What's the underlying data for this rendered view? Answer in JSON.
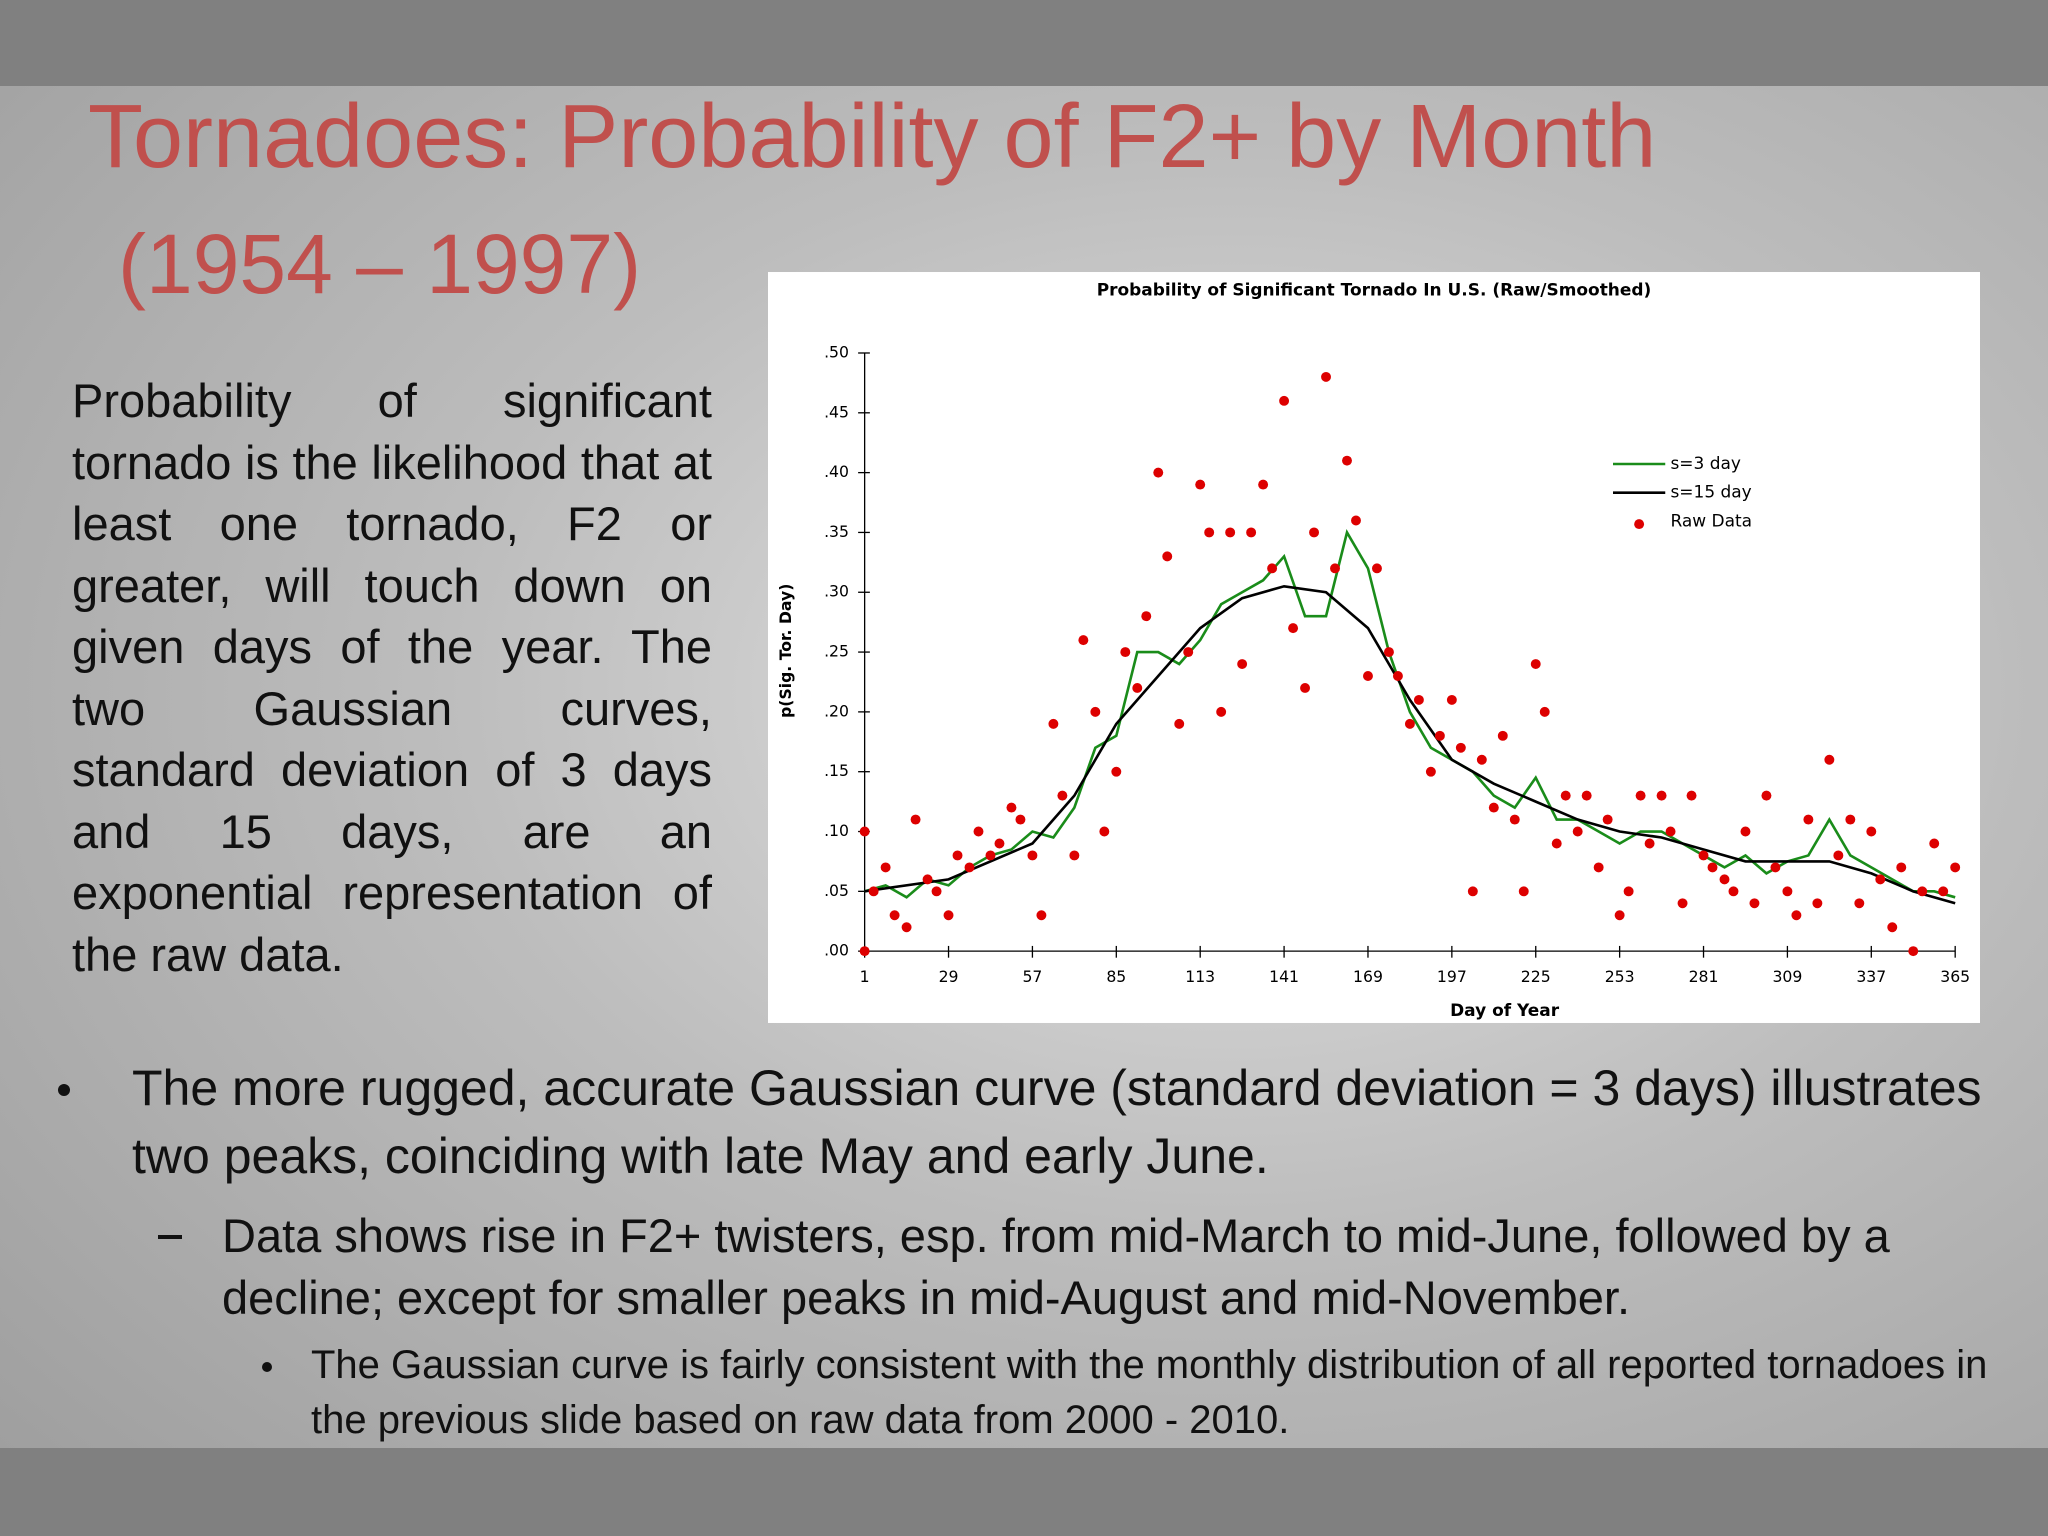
{
  "slide": {
    "title": "Tornadoes: Probability of F2+ by Month",
    "subtitle": "(1954 – 1997)",
    "paragraph": "Probability of significant tornado is the likelihood that at least one tornado, F2 or greater, will touch down on given days of the year.  The two Gaussian curves, standard deviation of 3 days and 15 days, are an exponential representation of the raw data.",
    "bullets": [
      "The more rugged, accurate Gaussian curve (standard deviation = 3 days) illustrates two peaks, coinciding with late May and early June.",
      "Data shows rise in F2+ twisters, esp. from mid-March to mid-June, followed by a decline; except for smaller peaks in mid-August and mid-November.",
      "The Gaussian curve is fairly consistent with the monthly distribution of all reported tornadoes in the previous slide based on raw data from 2000 - 2010."
    ]
  },
  "chart_data": {
    "type": "scatter",
    "title": "Probability of Significant Tornado In U.S. (Raw/Smoothed)",
    "x_label": "Day of Year",
    "y_label": "p(Sig. Tor. Day)",
    "xlim": [
      1,
      365
    ],
    "ylim": [
      0,
      0.5
    ],
    "xticks": [
      1,
      29,
      57,
      85,
      113,
      141,
      169,
      197,
      225,
      253,
      281,
      309,
      337,
      365
    ],
    "yticks": [
      {
        "value": 0,
        "label": ".00"
      },
      {
        "value": 0.05,
        "label": ".05"
      },
      {
        "value": 0.1,
        "label": ".10"
      },
      {
        "value": 0.15,
        "label": ".15"
      },
      {
        "value": 0.2,
        "label": ".20"
      },
      {
        "value": 0.25,
        "label": ".25"
      },
      {
        "value": 0.3,
        "label": ".30"
      },
      {
        "value": 0.35,
        "label": ".35"
      },
      {
        "value": 0.4,
        "label": ".40"
      },
      {
        "value": 0.45,
        "label": ".45"
      },
      {
        "value": 0.5,
        "label": ".50"
      }
    ],
    "grid": false,
    "legend": "upper right",
    "series": [
      {
        "name": "s=3 day",
        "type": "line",
        "color": "#1a8c1a",
        "x": [
          1,
          8,
          15,
          22,
          29,
          36,
          43,
          50,
          57,
          64,
          71,
          78,
          85,
          92,
          99,
          106,
          113,
          120,
          127,
          134,
          141,
          148,
          155,
          162,
          169,
          176,
          183,
          190,
          197,
          204,
          211,
          218,
          225,
          232,
          239,
          246,
          253,
          260,
          267,
          274,
          281,
          288,
          295,
          302,
          309,
          316,
          323,
          330,
          337,
          344,
          351,
          358,
          365
        ],
        "values": [
          0.05,
          0.055,
          0.045,
          0.06,
          0.055,
          0.07,
          0.08,
          0.085,
          0.1,
          0.095,
          0.12,
          0.17,
          0.18,
          0.25,
          0.25,
          0.24,
          0.26,
          0.29,
          0.3,
          0.31,
          0.33,
          0.28,
          0.28,
          0.35,
          0.32,
          0.25,
          0.2,
          0.17,
          0.16,
          0.15,
          0.13,
          0.12,
          0.145,
          0.11,
          0.11,
          0.1,
          0.09,
          0.1,
          0.1,
          0.09,
          0.08,
          0.07,
          0.08,
          0.065,
          0.075,
          0.08,
          0.11,
          0.08,
          0.07,
          0.06,
          0.05,
          0.05,
          0.045
        ]
      },
      {
        "name": "s=15 day",
        "type": "line",
        "color": "#000000",
        "x": [
          1,
          29,
          57,
          71,
          85,
          99,
          113,
          127,
          141,
          155,
          169,
          183,
          197,
          211,
          225,
          239,
          253,
          267,
          281,
          295,
          309,
          323,
          337,
          351,
          365
        ],
        "values": [
          0.05,
          0.06,
          0.09,
          0.13,
          0.19,
          0.23,
          0.27,
          0.295,
          0.305,
          0.3,
          0.27,
          0.21,
          0.16,
          0.14,
          0.125,
          0.11,
          0.1,
          0.095,
          0.085,
          0.075,
          0.075,
          0.075,
          0.065,
          0.05,
          0.04
        ]
      },
      {
        "name": "Raw Data",
        "type": "point",
        "color": "#dd0000",
        "x": [
          1,
          1,
          4,
          8,
          11,
          15,
          18,
          22,
          25,
          29,
          32,
          36,
          39,
          43,
          46,
          50,
          53,
          57,
          60,
          64,
          67,
          71,
          74,
          78,
          81,
          85,
          88,
          92,
          95,
          99,
          102,
          106,
          109,
          113,
          116,
          120,
          123,
          127,
          130,
          134,
          137,
          141,
          144,
          148,
          151,
          155,
          158,
          162,
          165,
          169,
          172,
          176,
          179,
          183,
          186,
          190,
          193,
          197,
          200,
          204,
          207,
          211,
          214,
          218,
          221,
          225,
          228,
          232,
          235,
          239,
          242,
          246,
          249,
          253,
          256,
          260,
          263,
          267,
          270,
          274,
          277,
          281,
          284,
          288,
          291,
          295,
          298,
          302,
          305,
          309,
          312,
          316,
          319,
          323,
          326,
          330,
          333,
          337,
          340,
          344,
          347,
          351,
          354,
          358,
          361,
          365
        ],
        "values": [
          0.1,
          0,
          0.05,
          0.07,
          0.03,
          0.02,
          0.11,
          0.06,
          0.05,
          0.03,
          0.08,
          0.07,
          0.1,
          0.08,
          0.09,
          0.12,
          0.11,
          0.08,
          0.03,
          0.19,
          0.13,
          0.08,
          0.26,
          0.2,
          0.1,
          0.15,
          0.25,
          0.22,
          0.28,
          0.4,
          0.33,
          0.19,
          0.25,
          0.39,
          0.35,
          0.2,
          0.35,
          0.24,
          0.35,
          0.39,
          0.32,
          0.46,
          0.27,
          0.22,
          0.35,
          0.48,
          0.32,
          0.41,
          0.36,
          0.23,
          0.32,
          0.25,
          0.23,
          0.19,
          0.21,
          0.15,
          0.18,
          0.21,
          0.17,
          0.05,
          0.16,
          0.12,
          0.18,
          0.11,
          0.05,
          0.24,
          0.2,
          0.09,
          0.13,
          0.1,
          0.13,
          0.07,
          0.11,
          0.03,
          0.05,
          0.13,
          0.09,
          0.13,
          0.1,
          0.04,
          0.13,
          0.08,
          0.07,
          0.06,
          0.05,
          0.1,
          0.04,
          0.13,
          0.07,
          0.05,
          0.03,
          0.11,
          0.04,
          0.16,
          0.08,
          0.11,
          0.04,
          0.1,
          0.06,
          0.02,
          0.07,
          0,
          0.05,
          0.09,
          0.05,
          0.07
        ]
      }
    ]
  }
}
